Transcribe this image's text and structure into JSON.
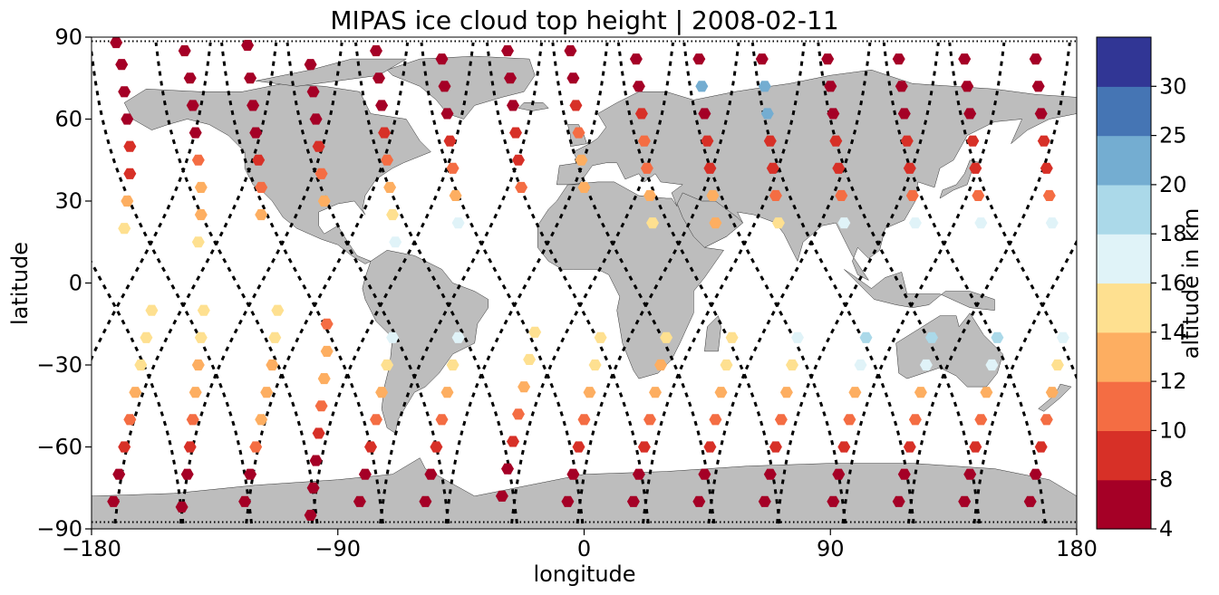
{
  "chart_data": {
    "type": "scatter",
    "title": "MIPAS ice cloud top height | 2008-02-11",
    "xlabel": "longitude",
    "ylabel": "latitude",
    "xlim": [
      -180,
      180
    ],
    "ylim": [
      -90,
      90
    ],
    "xticks": [
      -180,
      -90,
      0,
      90,
      180
    ],
    "xtick_labels": [
      "−180",
      "−90",
      "0",
      "90",
      "180"
    ],
    "yticks": [
      90,
      60,
      30,
      0,
      -30,
      -60,
      -90
    ],
    "ytick_labels": [
      "90",
      "60",
      "30",
      "0",
      "−30",
      "−60",
      "−90"
    ],
    "grid": false,
    "background": "world map, land shaded gray",
    "land_color": "#bdbdbd",
    "track_color": "#000000",
    "colorbar": {
      "label": "altitude in km",
      "position": "right",
      "bounds": [
        4,
        8,
        10,
        12,
        14,
        16,
        18,
        20,
        25,
        30
      ],
      "tick_labels": [
        "4",
        "8",
        "10",
        "12",
        "14",
        "16",
        "18",
        "20",
        "25",
        "30"
      ],
      "colors": [
        "#a50026",
        "#d73027",
        "#f46d43",
        "#fdae61",
        "#fee090",
        "#e0f3f8",
        "#abd9e9",
        "#74add1",
        "#4575b4",
        "#313695"
      ]
    },
    "orbits": {
      "description": "descending-orbit sample tracks (lon at lat=0, lon drift per degree latitude)",
      "equator_longitudes": [
        -176,
        -151,
        -127,
        -103,
        -79,
        -54,
        -30,
        -6,
        18,
        42,
        66,
        91,
        115,
        139,
        163
      ],
      "ascending_equator_longitudes": [
        -166,
        -142,
        -118,
        -94,
        -70,
        -45,
        -21,
        3,
        27,
        51,
        75,
        100,
        124,
        148,
        172
      ]
    },
    "series": [
      {
        "lon": [
          -172,
          -170,
          -168,
          -166,
          -164,
          -162,
          -160,
          -158
        ],
        "lat": [
          -80,
          -70,
          -60,
          -50,
          -40,
          -30,
          -20,
          -10
        ],
        "alt": [
          6,
          7,
          9,
          11,
          13,
          14,
          14,
          15
        ]
      },
      {
        "lon": [
          -171,
          -169,
          -168,
          -167,
          -166,
          -166,
          -167,
          -168
        ],
        "lat": [
          88,
          80,
          70,
          60,
          50,
          40,
          30,
          20
        ],
        "alt": [
          6,
          6,
          6,
          7,
          8,
          9,
          13,
          15
        ]
      },
      {
        "lon": [
          -147,
          -145,
          -144,
          -143,
          -142,
          -141,
          -140,
          -139
        ],
        "lat": [
          -82,
          -70,
          -60,
          -50,
          -40,
          -30,
          -20,
          -10
        ],
        "alt": [
          6,
          7,
          9,
          11,
          12,
          13,
          15,
          15
        ]
      },
      {
        "lon": [
          -146,
          -144,
          -143,
          -142,
          -141,
          -140,
          -140,
          -141
        ],
        "lat": [
          85,
          75,
          65,
          55,
          45,
          35,
          25,
          15
        ],
        "alt": [
          6,
          6,
          6,
          7,
          11,
          12,
          13,
          14
        ]
      },
      {
        "lon": [
          -124,
          -122,
          -120,
          -118,
          -116,
          -114,
          -113,
          -112
        ],
        "lat": [
          -80,
          -70,
          -60,
          -50,
          -40,
          -30,
          -20,
          -10
        ],
        "alt": [
          6,
          7,
          10,
          12,
          13,
          13,
          14,
          14
        ]
      },
      {
        "lon": [
          -123,
          -122,
          -121,
          -120,
          -119,
          -118,
          -118
        ],
        "lat": [
          87,
          75,
          65,
          55,
          45,
          35,
          25
        ],
        "alt": [
          6,
          6,
          6,
          7,
          9,
          11,
          12
        ]
      },
      {
        "lon": [
          -100,
          -99,
          -98,
          -97,
          -96,
          -95,
          -94,
          -94
        ],
        "lat": [
          -85,
          -75,
          -65,
          -55,
          -45,
          -35,
          -25,
          -15
        ],
        "alt": [
          6,
          6,
          7,
          9,
          11,
          12,
          12,
          11
        ]
      },
      {
        "lon": [
          -100,
          -99,
          -98,
          -97,
          -96,
          -95
        ],
        "lat": [
          80,
          70,
          60,
          50,
          40,
          30
        ],
        "alt": [
          6,
          6,
          7,
          8,
          11,
          12
        ]
      },
      {
        "lon": [
          -82,
          -80,
          -78,
          -76,
          -74,
          -72,
          -70
        ],
        "lat": [
          -80,
          -70,
          -60,
          -50,
          -40,
          -30,
          -20
        ],
        "alt": [
          6,
          7,
          9,
          11,
          12,
          14,
          16
        ]
      },
      {
        "lon": [
          -76,
          -75,
          -74,
          -73,
          -72,
          -71,
          -70,
          -69
        ],
        "lat": [
          85,
          75,
          65,
          55,
          45,
          35,
          25,
          15
        ],
        "alt": [
          6,
          6,
          7,
          9,
          10,
          12,
          14,
          17
        ]
      },
      {
        "lon": [
          -58,
          -56,
          -54,
          -52,
          -50,
          -48,
          -46
        ],
        "lat": [
          -80,
          -70,
          -60,
          -50,
          -40,
          -30,
          -20
        ],
        "alt": [
          6,
          7,
          9,
          11,
          12,
          14,
          16
        ]
      },
      {
        "lon": [
          -52,
          -51,
          -50,
          -49,
          -48,
          -47,
          -46
        ],
        "lat": [
          82,
          72,
          62,
          52,
          42,
          32,
          22
        ],
        "alt": [
          6,
          6,
          7,
          8,
          10,
          12,
          16
        ]
      },
      {
        "lon": [
          -30,
          -28,
          -26,
          -24,
          -22,
          -20,
          -18
        ],
        "lat": [
          -78,
          -68,
          -58,
          -48,
          -38,
          -28,
          -18
        ],
        "alt": [
          6,
          7,
          9,
          11,
          12,
          14,
          15
        ]
      },
      {
        "lon": [
          -28,
          -27,
          -26,
          -25,
          -24,
          -23
        ],
        "lat": [
          85,
          75,
          65,
          55,
          45,
          35
        ],
        "alt": [
          6,
          6,
          7,
          8,
          9,
          10
        ]
      },
      {
        "lon": [
          -6,
          -4,
          -2,
          0,
          2,
          4,
          6
        ],
        "lat": [
          -80,
          -70,
          -60,
          -50,
          -40,
          -30,
          -20
        ],
        "alt": [
          6,
          7,
          9,
          11,
          13,
          14,
          15
        ]
      },
      {
        "lon": [
          -5,
          -4,
          -3,
          -2,
          -1,
          0
        ],
        "lat": [
          85,
          75,
          65,
          55,
          45,
          35
        ],
        "alt": [
          6,
          7,
          9,
          11,
          12,
          13
        ]
      },
      {
        "lon": [
          18,
          20,
          22,
          24,
          26,
          28,
          30
        ],
        "lat": [
          -80,
          -70,
          -60,
          -50,
          -40,
          -30,
          -20
        ],
        "alt": [
          6,
          7,
          9,
          11,
          12,
          13,
          15
        ]
      },
      {
        "lon": [
          19,
          20,
          21,
          22,
          23,
          24,
          25
        ],
        "lat": [
          82,
          72,
          62,
          52,
          42,
          32,
          22
        ],
        "alt": [
          6,
          7,
          9,
          10,
          11,
          12,
          14
        ]
      },
      {
        "lon": [
          42,
          44,
          46,
          48,
          50,
          52,
          54
        ],
        "lat": [
          -80,
          -70,
          -60,
          -50,
          -40,
          -30,
          -20
        ],
        "alt": [
          6,
          7,
          9,
          11,
          13,
          14,
          15
        ]
      },
      {
        "lon": [
          42,
          43,
          44,
          45,
          46,
          47,
          48
        ],
        "lat": [
          82,
          72,
          62,
          52,
          42,
          32,
          22
        ],
        "alt": [
          6,
          21,
          7,
          8,
          9,
          12,
          13
        ]
      },
      {
        "lon": [
          66,
          68,
          70,
          72,
          74,
          76,
          78
        ],
        "lat": [
          -80,
          -70,
          -60,
          -50,
          -40,
          -30,
          -20
        ],
        "alt": [
          6,
          7,
          9,
          11,
          12,
          14,
          16
        ]
      },
      {
        "lon": [
          65,
          66,
          67,
          68,
          69,
          70,
          71
        ],
        "lat": [
          82,
          72,
          62,
          52,
          42,
          32,
          22
        ],
        "alt": [
          6,
          21,
          22,
          8,
          9,
          11,
          14
        ]
      },
      {
        "lon": [
          91,
          93,
          95,
          97,
          99,
          101,
          103
        ],
        "lat": [
          -80,
          -70,
          -60,
          -50,
          -40,
          -30,
          -20
        ],
        "alt": [
          6,
          7,
          9,
          11,
          13,
          17,
          19
        ]
      },
      {
        "lon": [
          89,
          90,
          91,
          92,
          93,
          94,
          95
        ],
        "lat": [
          82,
          72,
          62,
          52,
          42,
          32,
          22
        ],
        "alt": [
          6,
          6,
          7,
          8,
          9,
          10,
          17
        ]
      },
      {
        "lon": [
          115,
          117,
          119,
          121,
          123,
          125,
          127
        ],
        "lat": [
          -80,
          -70,
          -60,
          -50,
          -40,
          -30,
          -20
        ],
        "alt": [
          6,
          7,
          9,
          11,
          13,
          17,
          19
        ]
      },
      {
        "lon": [
          115,
          116,
          117,
          118,
          119,
          120,
          121
        ],
        "lat": [
          82,
          72,
          62,
          52,
          42,
          32,
          22
        ],
        "alt": [
          6,
          6,
          7,
          8,
          9,
          10,
          17
        ]
      },
      {
        "lon": [
          139,
          141,
          143,
          145,
          147,
          149,
          151
        ],
        "lat": [
          -80,
          -70,
          -60,
          -50,
          -40,
          -30,
          -20
        ],
        "alt": [
          6,
          7,
          9,
          11,
          13,
          17,
          19
        ]
      },
      {
        "lon": [
          139,
          140,
          141,
          142,
          143,
          144,
          145
        ],
        "lat": [
          82,
          72,
          62,
          52,
          42,
          32,
          22
        ],
        "alt": [
          6,
          6,
          7,
          8,
          9,
          11,
          17
        ]
      },
      {
        "lon": [
          163,
          165,
          167,
          169,
          171,
          173,
          175
        ],
        "lat": [
          -80,
          -70,
          -60,
          -50,
          -40,
          -30,
          -20
        ],
        "alt": [
          6,
          7,
          9,
          11,
          13,
          15,
          17
        ]
      },
      {
        "lon": [
          165,
          166,
          167,
          168,
          169,
          170,
          171
        ],
        "lat": [
          82,
          72,
          62,
          52,
          42,
          32,
          22
        ],
        "alt": [
          6,
          6,
          7,
          8,
          9,
          11,
          17
        ]
      }
    ]
  }
}
